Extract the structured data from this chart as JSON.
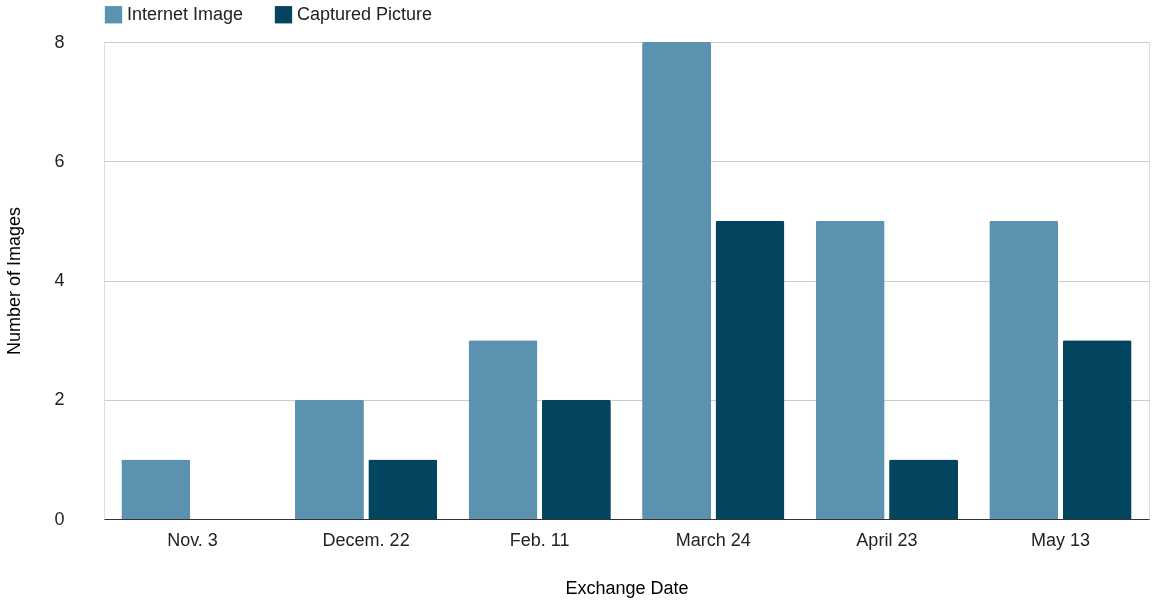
{
  "chart_data": {
    "type": "bar",
    "xlabel": "Exchange Date",
    "ylabel": "Number of Images",
    "categories": [
      "Nov. 3",
      "Decem. 22",
      "Feb. 11",
      "March 24",
      "April 23",
      "May 13"
    ],
    "series": [
      {
        "name": "Internet Image",
        "color": "#5a92b0",
        "values": [
          1,
          2,
          3,
          8,
          5,
          5
        ]
      },
      {
        "name": "Captured Picture",
        "color": "#03455f",
        "values": [
          0,
          1,
          2,
          5,
          1,
          3
        ]
      }
    ],
    "ylim": [
      0,
      8
    ],
    "yticks": [
      0,
      2,
      4,
      6,
      8
    ],
    "grid": "y",
    "legend": "top"
  }
}
